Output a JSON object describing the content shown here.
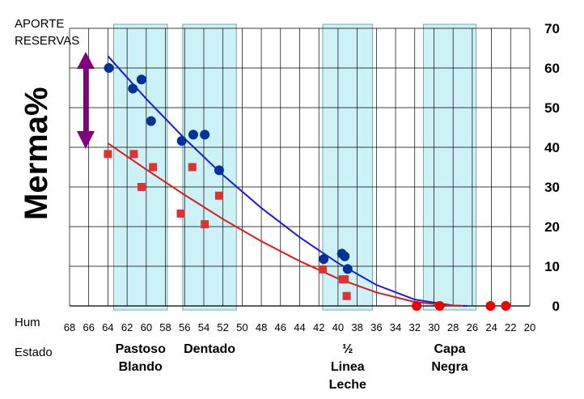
{
  "chart_data": {
    "type": "scatter",
    "ylabel": "Merma%",
    "x_row_label": "Hum",
    "stage_row_label": "Estado",
    "annotation": [
      "APORTE",
      "RESERVAS"
    ],
    "xlim": [
      68,
      20
    ],
    "ylim": [
      0,
      70
    ],
    "x_ticks": [
      68,
      66,
      64,
      62,
      60,
      58,
      56,
      54,
      52,
      50,
      48,
      46,
      44,
      42,
      40,
      38,
      36,
      34,
      32,
      30,
      28,
      26,
      24,
      22,
      20
    ],
    "y_ticks": [
      0,
      10,
      20,
      30,
      40,
      50,
      60,
      70
    ],
    "y_axis_side": "right",
    "grid": true,
    "stages": [
      {
        "lines": [
          "Pastoso",
          "Blando"
        ],
        "x_from": 63.4,
        "x_to": 57.8
      },
      {
        "lines": [
          "Dentado"
        ],
        "x_from": 56.2,
        "x_to": 50.6
      },
      {
        "lines": [
          "½",
          "Linea",
          "Leche"
        ],
        "x_from": 41.6,
        "x_to": 36.4
      },
      {
        "lines": [
          "Capa",
          "Negra"
        ],
        "x_from": 31.1,
        "x_to": 25.6
      }
    ],
    "series": [
      {
        "color": "#003399",
        "marker": "circle",
        "points": [
          [
            63.9,
            60
          ],
          [
            61.4,
            54.8
          ],
          [
            60.5,
            57.1
          ],
          [
            59.5,
            46.6
          ],
          [
            56.3,
            41.6
          ],
          [
            55.1,
            43.2
          ],
          [
            53.9,
            43.2
          ],
          [
            52.4,
            34.2
          ],
          [
            41.5,
            11.8
          ],
          [
            39.6,
            13.2
          ],
          [
            39.3,
            12.5
          ],
          [
            39.0,
            9.3
          ]
        ],
        "trend": [
          [
            64,
            63
          ],
          [
            60,
            52.2
          ],
          [
            56,
            42.2
          ],
          [
            52,
            33.0
          ],
          [
            48,
            24.7
          ],
          [
            44,
            17.3
          ],
          [
            40,
            10.8
          ],
          [
            36,
            5.3
          ],
          [
            32,
            1.6
          ],
          [
            28,
            0.1
          ],
          [
            26.5,
            0
          ]
        ],
        "trend_color": "#1a1adb"
      },
      {
        "color": "#dd3333",
        "marker": "square",
        "points": [
          [
            64,
            38.3
          ],
          [
            61.3,
            38.3
          ],
          [
            60.5,
            30
          ],
          [
            59.3,
            35
          ],
          [
            56.4,
            23.3
          ],
          [
            55.2,
            35
          ],
          [
            53.9,
            20.6
          ],
          [
            52.4,
            27.8
          ],
          [
            41.6,
            9.2
          ],
          [
            39.5,
            6.7
          ],
          [
            39.3,
            6.7
          ],
          [
            39.1,
            2.5
          ]
        ],
        "trend": [
          [
            64,
            41
          ],
          [
            60,
            34.4
          ],
          [
            56,
            28.0
          ],
          [
            52,
            21.9
          ],
          [
            48,
            16.3
          ],
          [
            44,
            11.3
          ],
          [
            40,
            6.9
          ],
          [
            36,
            3.4
          ],
          [
            32,
            1.0
          ],
          [
            28,
            0.05
          ],
          [
            27,
            0
          ]
        ],
        "trend_color": "#d91a1a"
      },
      {
        "color": "#ee0000",
        "marker": "circle",
        "points": [
          [
            31.8,
            0
          ],
          [
            29.4,
            0
          ],
          [
            24.1,
            0
          ],
          [
            22.5,
            0
          ]
        ]
      }
    ]
  }
}
